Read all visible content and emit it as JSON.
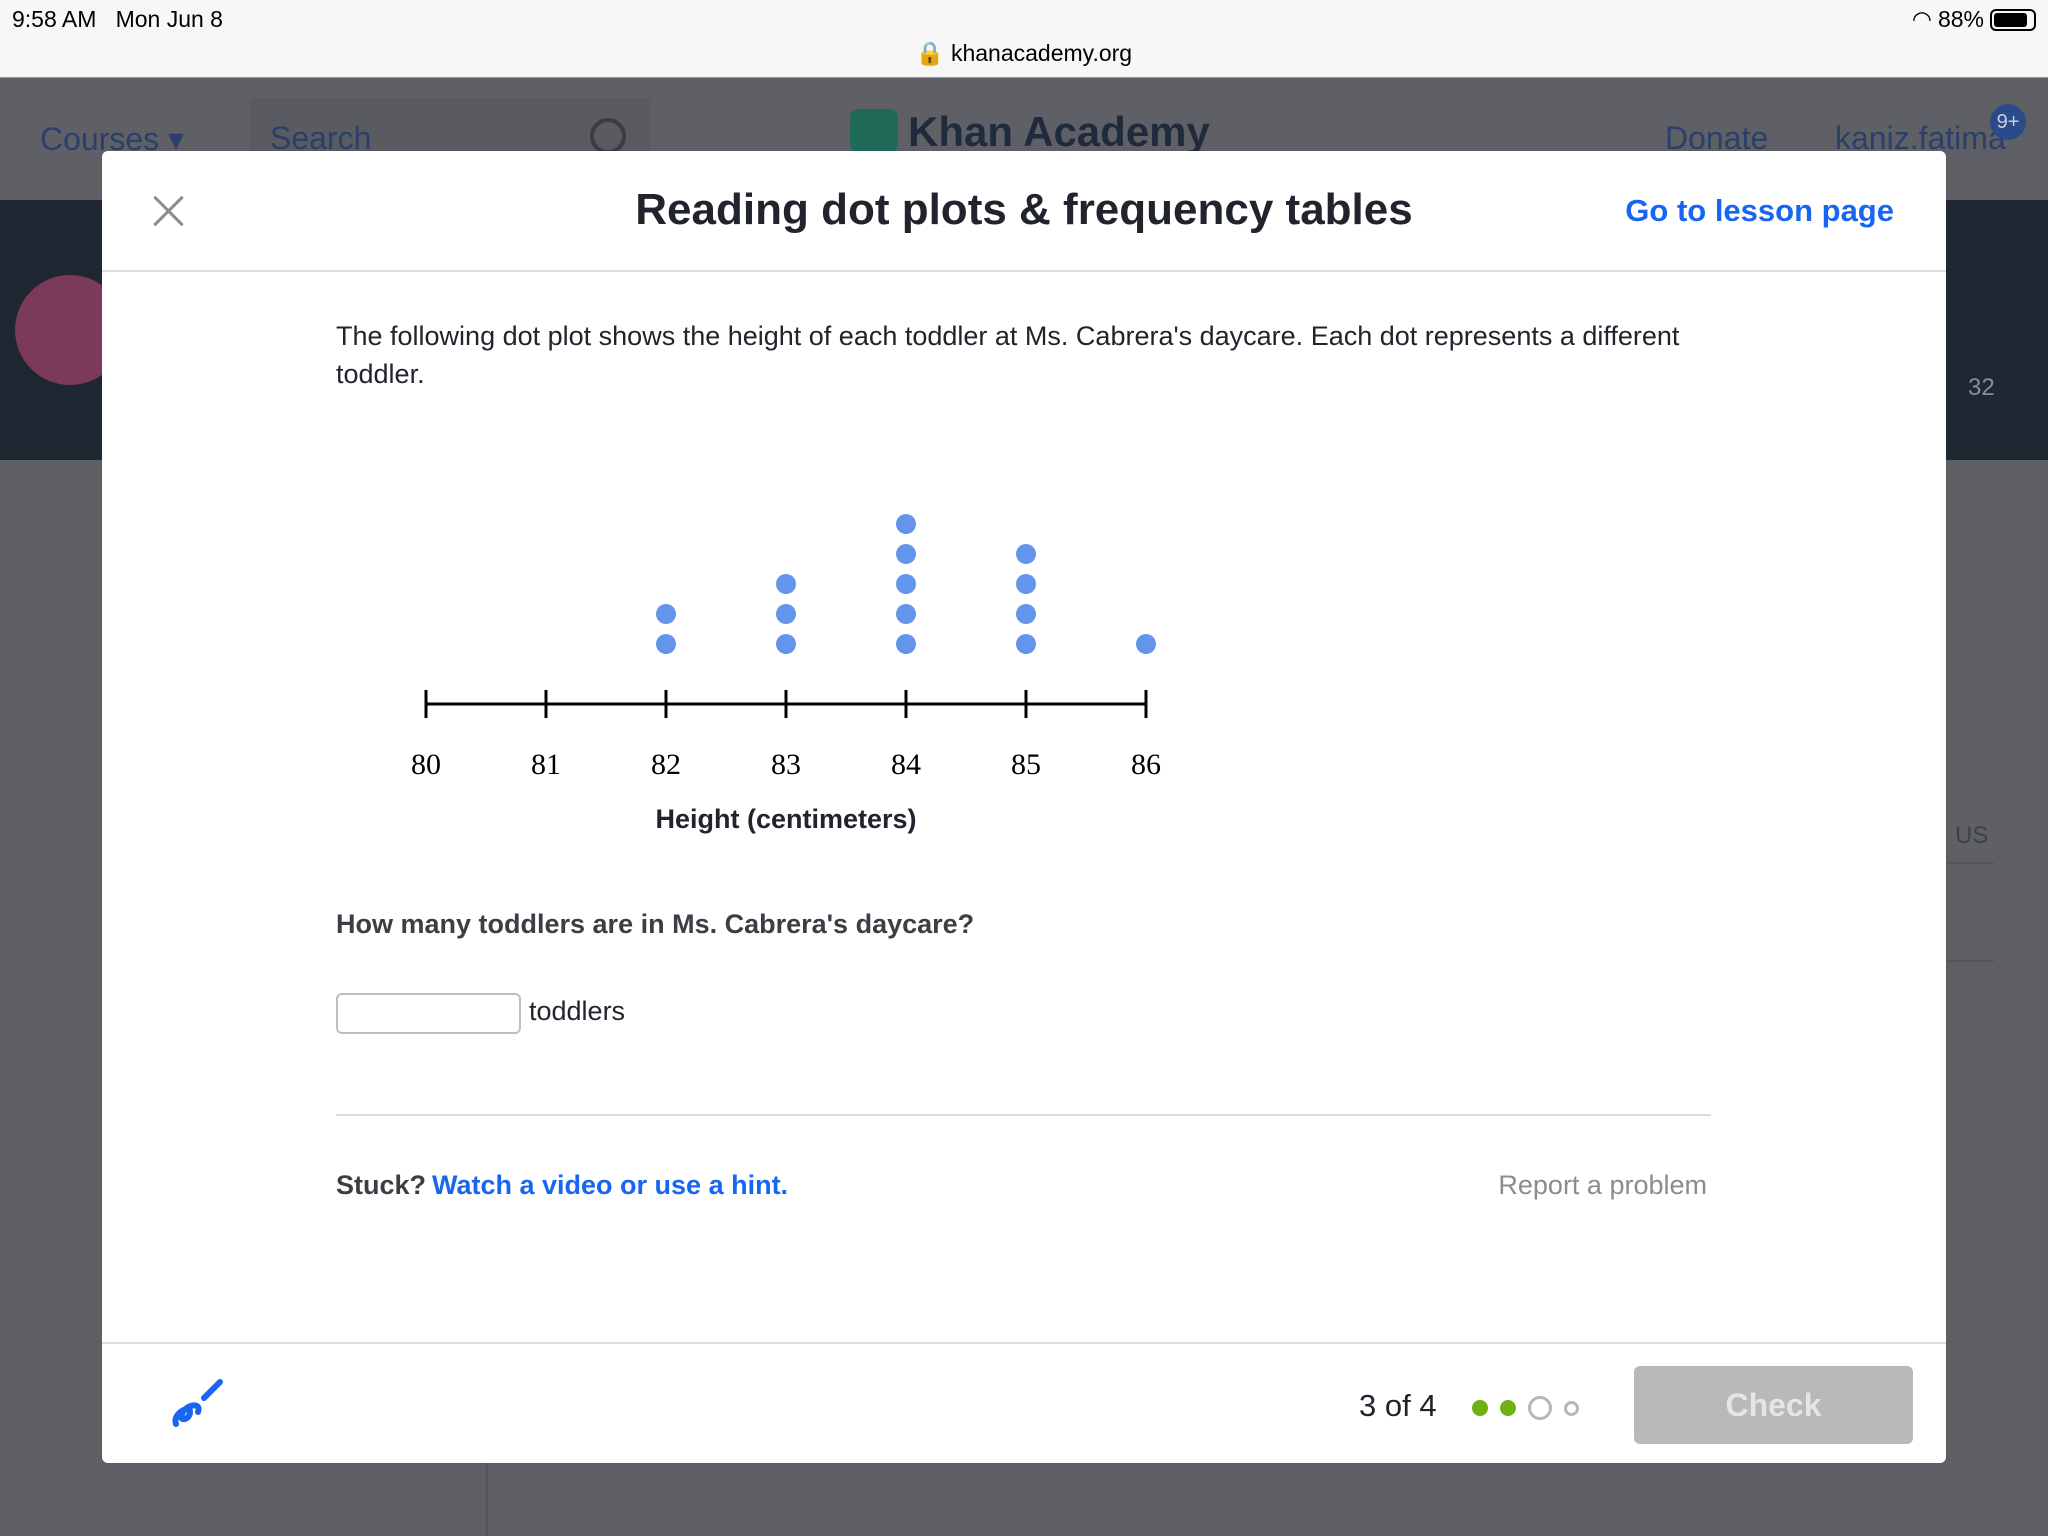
{
  "status_bar": {
    "time": "9:58 AM",
    "date": "Mon Jun 8",
    "url": "khanacademy.org",
    "battery": "88%"
  },
  "background": {
    "courses": "Courses",
    "search_placeholder": "Search",
    "logo": "Khan Academy",
    "donate": "Donate",
    "user": "kaniz.fatima",
    "notifications": "9+",
    "points": "32",
    "status_col": "US"
  },
  "modal": {
    "title": "Reading dot plots & frequency tables",
    "lesson_link": "Go to lesson page",
    "prompt": "The following dot plot shows the height of each toddler at Ms. Cabrera's daycare. Each dot represents a different toddler.",
    "question": "How many toddlers are in Ms. Cabrera's daycare?",
    "answer_value": "",
    "answer_unit": "toddlers",
    "stuck": "Stuck?",
    "hint_link": "Watch a video or use a hint.",
    "report": "Report a problem",
    "progress_text": "3 of 4",
    "progress": {
      "completed": 2,
      "current": 3,
      "total": 4
    },
    "check_label": "Check",
    "colors": {
      "accent": "#1865f2",
      "dot": "#6495ed",
      "done": "#6fb012"
    }
  },
  "chart_data": {
    "type": "dot",
    "categories": [
      "80",
      "81",
      "82",
      "83",
      "84",
      "85",
      "86"
    ],
    "values": [
      0,
      0,
      2,
      3,
      5,
      4,
      1
    ],
    "xlabel": "Height (centimeters)",
    "xlim": [
      80,
      86
    ]
  }
}
